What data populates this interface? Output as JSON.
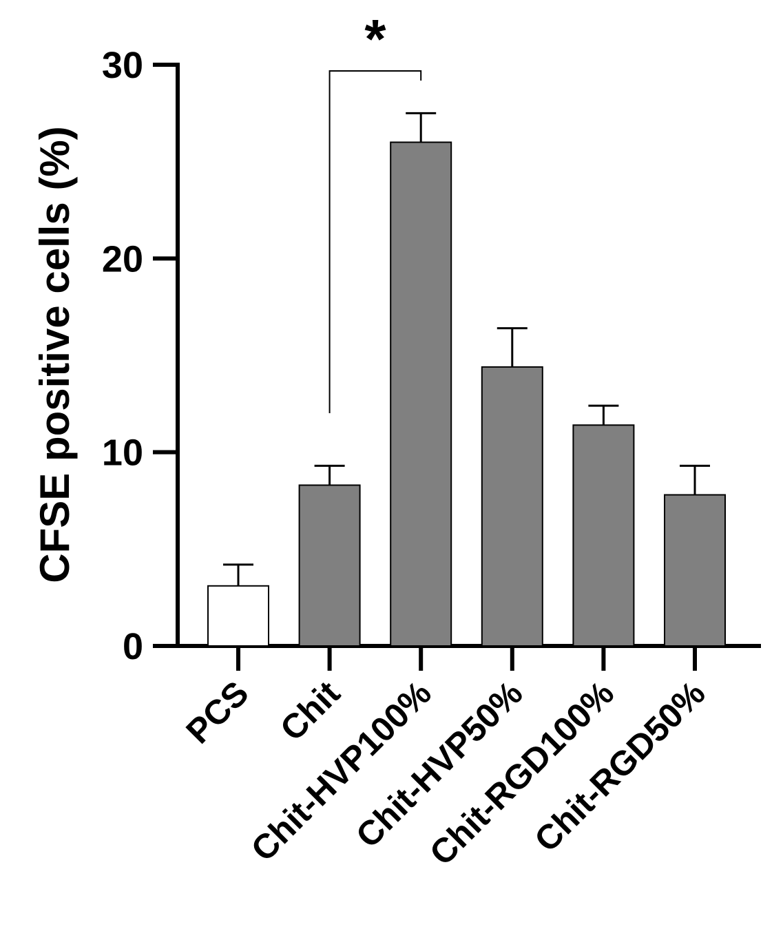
{
  "chart_data": {
    "type": "bar",
    "title": "",
    "xlabel": "",
    "ylabel": "CFSE positive cells (%)",
    "ylim": [
      0,
      30
    ],
    "yticks": [
      0,
      10,
      20,
      30
    ],
    "categories": [
      "PCS",
      "Chit",
      "Chit-HVP100%",
      "Chit-HVP50%",
      "Chit-RGD100%",
      "Chit-RGD50%"
    ],
    "values": [
      3.1,
      8.3,
      26.0,
      14.4,
      11.4,
      7.8
    ],
    "error_upper": [
      1.1,
      1.0,
      1.5,
      2.0,
      1.0,
      1.5
    ],
    "bar_colors": [
      "#ffffff",
      "#808080",
      "#808080",
      "#808080",
      "#808080",
      "#808080"
    ],
    "significance": [
      {
        "between": [
          "Chit",
          "Chit-HVP100%"
        ],
        "label": "*"
      }
    ],
    "grid": false,
    "legend": "none"
  }
}
